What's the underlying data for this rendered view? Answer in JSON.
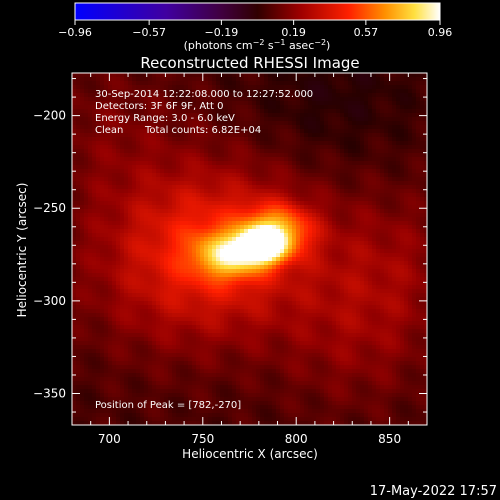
{
  "chart_data": {
    "type": "heatmap",
    "title": "Reconstructed RHESSI Image",
    "xlabel": "Heliocentric X (arcsec)",
    "ylabel": "Heliocentric Y (arcsec)",
    "xlim": [
      680,
      870
    ],
    "ylim": [
      -367,
      -177
    ],
    "x_ticks": [
      700,
      750,
      800,
      850
    ],
    "y_ticks": [
      -200,
      -250,
      -300,
      -350
    ],
    "x_tick_labels": [
      "700",
      "750",
      "800",
      "850"
    ],
    "y_tick_labels": [
      "−200",
      "−250",
      "−300",
      "−350"
    ],
    "colorbar": {
      "range": [
        -0.96,
        0.96
      ],
      "ticks": [
        -0.96,
        -0.57,
        -0.19,
        0.19,
        0.57,
        0.96
      ],
      "tick_labels": [
        "−0.96",
        "−0.57",
        "−0.19",
        "0.19",
        "0.57",
        "0.96"
      ],
      "unit_main": "(photons cm",
      "unit_exp1": "−2",
      "unit_mid": " s",
      "unit_exp2": "−1",
      "unit_mid2": " asec",
      "unit_exp3": "−2",
      "unit_end": ")"
    },
    "annotations": {
      "time_range": "30-Sep-2014 12:22:08.000 to 12:27:52.000",
      "detectors": "Detectors: 3F 6F 9F, Att 0",
      "energy_range": "Energy Range: 3.0 - 6.0 keV",
      "method": "Clean",
      "total_counts": "Total counts: 6.82E+04",
      "peak": "Position of Peak = [782,-270]"
    },
    "peak": [
      782,
      -270
    ],
    "sources": [
      {
        "x": 782,
        "y": -270,
        "sx": 8,
        "sy": 6,
        "amp": 0.96
      },
      {
        "x": 765,
        "y": -275,
        "sx": 12,
        "sy": 8,
        "amp": 0.55
      },
      {
        "x": 790,
        "y": -262,
        "sx": 12,
        "sy": 9,
        "amp": 0.45
      },
      {
        "x": 760,
        "y": -270,
        "sx": 35,
        "sy": 30,
        "amp": 0.28
      },
      {
        "x": 730,
        "y": -285,
        "sx": 40,
        "sy": 35,
        "amp": 0.12
      },
      {
        "x": 850,
        "y": -280,
        "sx": 30,
        "sy": 30,
        "amp": 0.12
      },
      {
        "x": 700,
        "y": -210,
        "sx": 30,
        "sy": 30,
        "amp": 0.08
      },
      {
        "x": 830,
        "y": -320,
        "sx": 30,
        "sy": 30,
        "amp": 0.1
      },
      {
        "x": 820,
        "y": -190,
        "sx": 30,
        "sy": 25,
        "amp": -0.06
      }
    ],
    "background_level": 0.05
  },
  "footer": {
    "timestamp": "17-May-2022 17:57"
  }
}
